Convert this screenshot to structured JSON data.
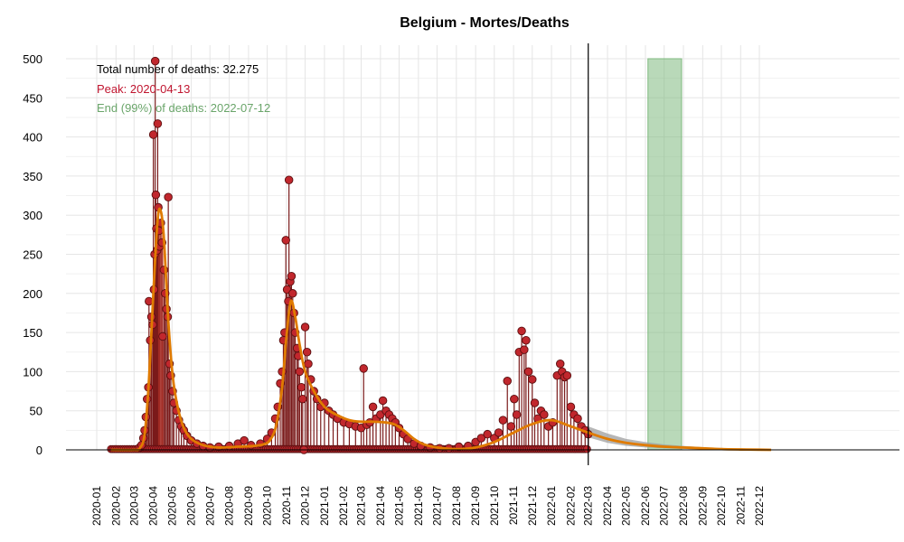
{
  "colors": {
    "points_fill": "#c1272d",
    "points_stroke": "#5a0f10",
    "stems": "#7a1a1a",
    "fit_line": "#e07b00",
    "peak": "#c0392b",
    "end_band": "#7fb97f",
    "ci": "#9e9e9e",
    "annot_total": "#000000",
    "annot_peak": "#c0152f",
    "annot_end": "#6aa56a"
  },
  "chart_data": {
    "type": "line",
    "title": "Belgium - Mortes/Deaths",
    "ylim": [
      0,
      500
    ],
    "y_ticks": [
      "0",
      "50",
      "100",
      "150",
      "200",
      "250",
      "300",
      "350",
      "400",
      "450",
      "500"
    ],
    "x_ticks": [
      "2020-01",
      "2020-02",
      "2020-03",
      "2020-04",
      "2020-05",
      "2020-06",
      "2020-07",
      "2020-08",
      "2020-09",
      "2020-10",
      "2020-11",
      "2020-12",
      "2021-01",
      "2021-02",
      "2021-03",
      "2021-04",
      "2021-05",
      "2021-06",
      "2021-07",
      "2021-08",
      "2021-09",
      "2021-10",
      "2021-11",
      "2021-12",
      "2022-01",
      "2022-02",
      "2022-03",
      "2022-04",
      "2022-05",
      "2022-06",
      "2022-07",
      "2022-08",
      "2022-09",
      "2022-10",
      "2022-11",
      "2022-12"
    ],
    "xlim": [
      "2019-12-20",
      "2023-01-15"
    ],
    "observed_range": [
      "2020-01-24",
      "2022-03-01"
    ],
    "last_observed": "2022-03-01",
    "peak_date": "2020-04-13",
    "end_band": [
      "2022-06-05",
      "2022-07-29"
    ],
    "annotations": {
      "total": "Total number of deaths: 32.275",
      "peak": "Peak: 2020-04-13",
      "end": "End (99%) of deaths: 2022-07-12"
    },
    "fit_curve": [
      [
        "2020-01-24",
        0
      ],
      [
        "2020-03-01",
        0
      ],
      [
        "2020-03-10",
        2
      ],
      [
        "2020-03-18",
        20
      ],
      [
        "2020-03-25",
        90
      ],
      [
        "2020-04-01",
        200
      ],
      [
        "2020-04-08",
        295
      ],
      [
        "2020-04-13",
        305
      ],
      [
        "2020-04-18",
        270
      ],
      [
        "2020-04-25",
        165
      ],
      [
        "2020-05-02",
        95
      ],
      [
        "2020-05-10",
        55
      ],
      [
        "2020-05-20",
        28
      ],
      [
        "2020-06-01",
        14
      ],
      [
        "2020-06-20",
        6
      ],
      [
        "2020-07-15",
        3
      ],
      [
        "2020-08-15",
        4
      ],
      [
        "2020-09-10",
        5
      ],
      [
        "2020-09-25",
        7
      ],
      [
        "2020-10-05",
        12
      ],
      [
        "2020-10-15",
        30
      ],
      [
        "2020-10-25",
        80
      ],
      [
        "2020-11-01",
        145
      ],
      [
        "2020-11-08",
        190
      ],
      [
        "2020-11-15",
        170
      ],
      [
        "2020-11-22",
        135
      ],
      [
        "2020-12-01",
        100
      ],
      [
        "2020-12-15",
        75
      ],
      [
        "2021-01-01",
        55
      ],
      [
        "2021-01-20",
        45
      ],
      [
        "2021-02-10",
        38
      ],
      [
        "2021-03-01",
        36
      ],
      [
        "2021-03-20",
        36
      ],
      [
        "2021-04-10",
        35
      ],
      [
        "2021-04-25",
        32
      ],
      [
        "2021-05-10",
        24
      ],
      [
        "2021-05-25",
        14
      ],
      [
        "2021-06-10",
        7
      ],
      [
        "2021-07-01",
        3
      ],
      [
        "2021-08-01",
        1
      ],
      [
        "2021-09-01",
        3
      ],
      [
        "2021-10-01",
        10
      ],
      [
        "2021-11-01",
        22
      ],
      [
        "2021-12-01",
        33
      ],
      [
        "2022-01-01",
        38
      ],
      [
        "2022-02-01",
        30
      ],
      [
        "2022-03-01",
        22
      ],
      [
        "2022-04-01",
        14
      ],
      [
        "2022-05-01",
        9
      ],
      [
        "2022-06-01",
        6
      ],
      [
        "2022-07-01",
        4
      ],
      [
        "2022-08-01",
        3
      ],
      [
        "2022-09-01",
        2
      ],
      [
        "2022-10-01",
        1
      ],
      [
        "2022-11-01",
        0.5
      ],
      [
        "2022-12-01",
        0.2
      ],
      [
        "2022-12-20",
        0
      ]
    ],
    "ci_band_upper": [
      [
        "2022-03-01",
        30
      ],
      [
        "2022-04-01",
        21
      ],
      [
        "2022-05-01",
        14
      ],
      [
        "2022-06-01",
        10
      ],
      [
        "2022-07-01",
        7
      ],
      [
        "2022-08-01",
        5
      ],
      [
        "2022-09-01",
        3.5
      ],
      [
        "2022-10-01",
        2.5
      ],
      [
        "2022-11-01",
        1.5
      ],
      [
        "2022-12-01",
        0.8
      ],
      [
        "2022-12-20",
        0.3
      ]
    ],
    "ci_band_lower": [
      [
        "2022-03-01",
        16
      ],
      [
        "2022-04-01",
        9
      ],
      [
        "2022-05-01",
        5
      ],
      [
        "2022-06-01",
        3
      ],
      [
        "2022-07-01",
        2
      ],
      [
        "2022-08-01",
        1.2
      ],
      [
        "2022-09-01",
        0.7
      ],
      [
        "2022-10-01",
        0.4
      ],
      [
        "2022-11-01",
        0.2
      ],
      [
        "2022-12-01",
        0
      ],
      [
        "2022-12-20",
        0
      ]
    ],
    "series": [
      {
        "name": "",
        "points": [
          [
            "2020-03-10",
            3
          ],
          [
            "2020-03-13",
            6
          ],
          [
            "2020-03-16",
            15
          ],
          [
            "2020-03-18",
            25
          ],
          [
            "2020-03-20",
            42
          ],
          [
            "2020-03-22",
            65
          ],
          [
            "2020-03-24",
            80
          ],
          [
            "2020-03-25",
            190
          ],
          [
            "2020-03-27",
            140
          ],
          [
            "2020-03-29",
            170
          ],
          [
            "2020-03-31",
            160
          ],
          [
            "2020-04-01",
            403
          ],
          [
            "2020-04-02",
            205
          ],
          [
            "2020-04-03",
            250
          ],
          [
            "2020-04-04",
            497
          ],
          [
            "2020-04-05",
            326
          ],
          [
            "2020-04-06",
            283
          ],
          [
            "2020-04-07",
            255
          ],
          [
            "2020-04-08",
            417
          ],
          [
            "2020-04-09",
            310
          ],
          [
            "2020-04-10",
            280
          ],
          [
            "2020-04-11",
            260
          ],
          [
            "2020-04-13",
            290
          ],
          [
            "2020-04-15",
            265
          ],
          [
            "2020-04-16",
            145
          ],
          [
            "2020-04-18",
            230
          ],
          [
            "2020-04-20",
            200
          ],
          [
            "2020-04-22",
            180
          ],
          [
            "2020-04-24",
            170
          ],
          [
            "2020-04-25",
            323
          ],
          [
            "2020-04-27",
            110
          ],
          [
            "2020-04-29",
            95
          ],
          [
            "2020-05-02",
            75
          ],
          [
            "2020-05-04",
            60
          ],
          [
            "2020-05-08",
            50
          ],
          [
            "2020-05-12",
            38
          ],
          [
            "2020-05-16",
            30
          ],
          [
            "2020-05-20",
            25
          ],
          [
            "2020-05-25",
            18
          ],
          [
            "2020-06-01",
            12
          ],
          [
            "2020-06-10",
            8
          ],
          [
            "2020-06-20",
            5
          ],
          [
            "2020-07-01",
            3
          ],
          [
            "2020-07-15",
            4
          ],
          [
            "2020-08-01",
            5
          ],
          [
            "2020-08-15",
            8
          ],
          [
            "2020-08-25",
            12
          ],
          [
            "2020-09-05",
            6
          ],
          [
            "2020-09-20",
            8
          ],
          [
            "2020-10-01",
            14
          ],
          [
            "2020-10-08",
            22
          ],
          [
            "2020-10-14",
            40
          ],
          [
            "2020-10-18",
            55
          ],
          [
            "2020-10-22",
            85
          ],
          [
            "2020-10-25",
            100
          ],
          [
            "2020-10-27",
            140
          ],
          [
            "2020-10-29",
            150
          ],
          [
            "2020-10-31",
            268
          ],
          [
            "2020-11-02",
            205
          ],
          [
            "2020-11-04",
            190
          ],
          [
            "2020-11-05",
            345
          ],
          [
            "2020-11-07",
            215
          ],
          [
            "2020-11-09",
            222
          ],
          [
            "2020-11-11",
            200
          ],
          [
            "2020-11-13",
            175
          ],
          [
            "2020-11-15",
            150
          ],
          [
            "2020-11-18",
            130
          ],
          [
            "2020-11-20",
            120
          ],
          [
            "2020-11-22",
            100
          ],
          [
            "2020-11-25",
            80
          ],
          [
            "2020-11-27",
            65
          ],
          [
            "2020-11-29",
            0
          ],
          [
            "2020-12-01",
            157
          ],
          [
            "2020-12-04",
            125
          ],
          [
            "2020-12-06",
            110
          ],
          [
            "2020-12-10",
            90
          ],
          [
            "2020-12-15",
            75
          ],
          [
            "2020-12-20",
            65
          ],
          [
            "2020-12-26",
            55
          ],
          [
            "2021-01-01",
            60
          ],
          [
            "2021-01-08",
            50
          ],
          [
            "2021-01-15",
            45
          ],
          [
            "2021-01-22",
            40
          ],
          [
            "2021-02-01",
            35
          ],
          [
            "2021-02-10",
            33
          ],
          [
            "2021-02-20",
            30
          ],
          [
            "2021-03-01",
            28
          ],
          [
            "2021-03-05",
            104
          ],
          [
            "2021-03-10",
            32
          ],
          [
            "2021-03-15",
            35
          ],
          [
            "2021-03-20",
            55
          ],
          [
            "2021-03-25",
            40
          ],
          [
            "2021-04-01",
            45
          ],
          [
            "2021-04-05",
            63
          ],
          [
            "2021-04-10",
            50
          ],
          [
            "2021-04-15",
            45
          ],
          [
            "2021-04-20",
            40
          ],
          [
            "2021-04-25",
            35
          ],
          [
            "2021-05-01",
            28
          ],
          [
            "2021-05-08",
            20
          ],
          [
            "2021-05-15",
            14
          ],
          [
            "2021-05-25",
            8
          ],
          [
            "2021-06-05",
            5
          ],
          [
            "2021-06-20",
            3
          ],
          [
            "2021-07-05",
            2
          ],
          [
            "2021-07-20",
            2
          ],
          [
            "2021-08-05",
            4
          ],
          [
            "2021-08-20",
            5
          ],
          [
            "2021-09-01",
            10
          ],
          [
            "2021-09-10",
            15
          ],
          [
            "2021-09-20",
            20
          ],
          [
            "2021-10-01",
            15
          ],
          [
            "2021-10-08",
            22
          ],
          [
            "2021-10-15",
            38
          ],
          [
            "2021-10-22",
            88
          ],
          [
            "2021-10-28",
            30
          ],
          [
            "2021-11-02",
            65
          ],
          [
            "2021-11-06",
            45
          ],
          [
            "2021-11-10",
            125
          ],
          [
            "2021-11-14",
            152
          ],
          [
            "2021-11-18",
            128
          ],
          [
            "2021-11-21",
            140
          ],
          [
            "2021-11-25",
            100
          ],
          [
            "2021-12-01",
            90
          ],
          [
            "2021-12-05",
            60
          ],
          [
            "2021-12-10",
            40
          ],
          [
            "2021-12-15",
            50
          ],
          [
            "2021-12-20",
            45
          ],
          [
            "2021-12-27",
            30
          ],
          [
            "2022-01-03",
            35
          ],
          [
            "2022-01-10",
            95
          ],
          [
            "2022-01-15",
            110
          ],
          [
            "2022-01-18",
            100
          ],
          [
            "2022-01-22",
            93
          ],
          [
            "2022-01-26",
            95
          ],
          [
            "2022-02-01",
            55
          ],
          [
            "2022-02-06",
            45
          ],
          [
            "2022-02-12",
            40
          ],
          [
            "2022-02-18",
            30
          ],
          [
            "2022-02-24",
            25
          ],
          [
            "2022-03-01",
            20
          ]
        ]
      }
    ]
  }
}
